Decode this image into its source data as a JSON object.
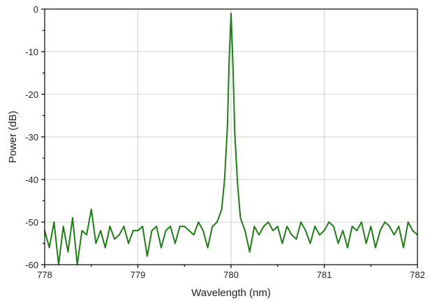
{
  "chart_data": {
    "type": "line",
    "title": "",
    "xlabel": "Wavelength (nm)",
    "ylabel": "Power (dB)",
    "xlim": [
      778,
      782
    ],
    "ylim": [
      -60,
      0
    ],
    "xticks": [
      "778",
      "779",
      "780",
      "781",
      "782"
    ],
    "yticks": [
      "0",
      "-10",
      "-20",
      "-30",
      "-40",
      "-50",
      "-60"
    ],
    "grid": true,
    "legend": "none",
    "series": [
      {
        "color": "#1e7d14",
        "x": [
          778.0,
          778.05,
          778.1,
          778.15,
          778.2,
          778.25,
          778.3,
          778.35,
          778.4,
          778.45,
          778.5,
          778.55,
          778.6,
          778.65,
          778.7,
          778.75,
          778.8,
          778.85,
          778.9,
          778.95,
          779.0,
          779.05,
          779.1,
          779.15,
          779.2,
          779.25,
          779.3,
          779.35,
          779.4,
          779.45,
          779.5,
          779.55,
          779.6,
          779.65,
          779.7,
          779.75,
          779.8,
          779.85,
          779.9,
          779.93,
          779.96,
          779.98,
          780.0,
          780.02,
          780.04,
          780.07,
          780.1,
          780.15,
          780.2,
          780.25,
          780.3,
          780.35,
          780.4,
          780.45,
          780.5,
          780.55,
          780.6,
          780.65,
          780.7,
          780.75,
          780.8,
          780.85,
          780.9,
          780.95,
          781.0,
          781.05,
          781.1,
          781.15,
          781.2,
          781.25,
          781.3,
          781.35,
          781.4,
          781.45,
          781.5,
          781.55,
          781.6,
          781.65,
          781.7,
          781.75,
          781.8,
          781.85,
          781.9,
          781.95,
          782.0
        ],
        "y": [
          -52,
          -56,
          -50,
          -60,
          -51,
          -57,
          -49,
          -60,
          -52,
          -53,
          -47,
          -55,
          -52,
          -56,
          -51,
          -54,
          -53,
          -51,
          -55,
          -52,
          -52,
          -51,
          -58,
          -52,
          -51,
          -56,
          -52,
          -51,
          -55,
          -51,
          -51,
          -52,
          -53,
          -50,
          -52,
          -56,
          -51,
          -50,
          -47,
          -40,
          -28,
          -12,
          -1,
          -13,
          -29,
          -41,
          -49,
          -52,
          -57,
          -51,
          -53,
          -51,
          -50,
          -52,
          -51,
          -55,
          -51,
          -53,
          -54,
          -50,
          -52,
          -55,
          -51,
          -53,
          -52,
          -50,
          -51,
          -55,
          -52,
          -56,
          -51,
          -52,
          -50,
          -55,
          -51,
          -56,
          -52,
          -50,
          -51,
          -53,
          -51,
          -56,
          -50,
          -52,
          -53
        ]
      }
    ]
  }
}
